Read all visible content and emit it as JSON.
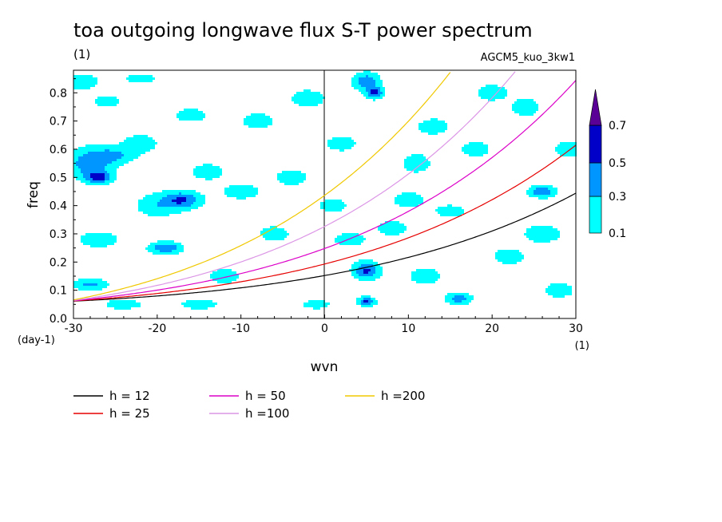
{
  "chart_data": {
    "type": "heatmap",
    "title": "toa outgoing longwave flux S-T power spectrum",
    "subtitle_left": "(1)",
    "subtitle_right": "AGCM5_kuo_3kw1",
    "xlabel": "wvn",
    "ylabel": "freq",
    "x_unit_label": "(1)",
    "y_unit_label": "(day-1)",
    "xlim": [
      -30,
      30
    ],
    "ylim": [
      0,
      0.88
    ],
    "xticks": [
      "-30",
      "-20",
      "-10",
      "0",
      "10",
      "20",
      "30"
    ],
    "yticks": [
      "0.0",
      "0.1",
      "0.2",
      "0.3",
      "0.4",
      "0.5",
      "0.6",
      "0.7",
      "0.8"
    ],
    "contour_levels": [
      0.1,
      0.3,
      0.5,
      0.7
    ],
    "colorbar_labels": [
      "0.1",
      "0.3",
      "0.5",
      "0.7"
    ],
    "colorbar_colors": [
      "#00ffff",
      "#0096ff",
      "#0000c8",
      "#5a0096"
    ],
    "dispersion_curves": [
      {
        "name": "h = 12",
        "h": 12,
        "color": "#000000"
      },
      {
        "name": "h = 25",
        "h": 25,
        "color": "#e60000"
      },
      {
        "name": "h = 50",
        "h": 50,
        "color": "#dc00c8"
      },
      {
        "name": "h =100",
        "h": 100,
        "color": "#dc96e6"
      },
      {
        "name": "h =200",
        "h": 200,
        "color": "#f0c800"
      }
    ],
    "power_blobs": [
      {
        "k": -29,
        "f": 0.84,
        "a": 2.2,
        "b": 0.03,
        "v": 0.22
      },
      {
        "k": -26,
        "f": 0.77,
        "a": 2.0,
        "b": 0.025,
        "v": 0.18
      },
      {
        "k": -28,
        "f": 0.55,
        "a": 2.5,
        "b": 0.05,
        "v": 0.45
      },
      {
        "k": -27,
        "f": 0.5,
        "a": 1.5,
        "b": 0.02,
        "v": 0.55
      },
      {
        "k": -25,
        "f": 0.58,
        "a": 2.5,
        "b": 0.03,
        "v": 0.3
      },
      {
        "k": -22,
        "f": 0.62,
        "a": 2.0,
        "b": 0.03,
        "v": 0.25
      },
      {
        "k": -17,
        "f": 0.42,
        "a": 2.2,
        "b": 0.03,
        "v": 0.5
      },
      {
        "k": -20,
        "f": 0.4,
        "a": 2.5,
        "b": 0.04,
        "v": 0.25
      },
      {
        "k": -19,
        "f": 0.25,
        "a": 1.8,
        "b": 0.02,
        "v": 0.5
      },
      {
        "k": -27,
        "f": 0.28,
        "a": 2.5,
        "b": 0.03,
        "v": 0.22
      },
      {
        "k": -28,
        "f": 0.12,
        "a": 2.0,
        "b": 0.02,
        "v": 0.35
      },
      {
        "k": -24,
        "f": 0.05,
        "a": 2.5,
        "b": 0.02,
        "v": 0.2
      },
      {
        "k": -14,
        "f": 0.52,
        "a": 2.0,
        "b": 0.03,
        "v": 0.22
      },
      {
        "k": -10,
        "f": 0.45,
        "a": 2.5,
        "b": 0.03,
        "v": 0.2
      },
      {
        "k": -8,
        "f": 0.7,
        "a": 2.0,
        "b": 0.03,
        "v": 0.22
      },
      {
        "k": -16,
        "f": 0.72,
        "a": 2.0,
        "b": 0.025,
        "v": 0.22
      },
      {
        "k": -6,
        "f": 0.3,
        "a": 2.0,
        "b": 0.03,
        "v": 0.2
      },
      {
        "k": -4,
        "f": 0.5,
        "a": 2.0,
        "b": 0.03,
        "v": 0.22
      },
      {
        "k": -2,
        "f": 0.78,
        "a": 2.0,
        "b": 0.03,
        "v": 0.25
      },
      {
        "k": 2,
        "f": 0.62,
        "a": 2.0,
        "b": 0.03,
        "v": 0.2
      },
      {
        "k": 5,
        "f": 0.84,
        "a": 1.5,
        "b": 0.03,
        "v": 0.45
      },
      {
        "k": 6,
        "f": 0.8,
        "a": 1.0,
        "b": 0.02,
        "v": 0.55
      },
      {
        "k": 5,
        "f": 0.17,
        "a": 1.5,
        "b": 0.03,
        "v": 0.55
      },
      {
        "k": 5,
        "f": 0.06,
        "a": 1.0,
        "b": 0.015,
        "v": 0.55
      },
      {
        "k": 3,
        "f": 0.28,
        "a": 2.0,
        "b": 0.025,
        "v": 0.22
      },
      {
        "k": 10,
        "f": 0.42,
        "a": 2.0,
        "b": 0.03,
        "v": 0.22
      },
      {
        "k": 11,
        "f": 0.55,
        "a": 1.5,
        "b": 0.03,
        "v": 0.3
      },
      {
        "k": 13,
        "f": 0.68,
        "a": 2.0,
        "b": 0.03,
        "v": 0.22
      },
      {
        "k": 15,
        "f": 0.38,
        "a": 2.0,
        "b": 0.025,
        "v": 0.2
      },
      {
        "k": 18,
        "f": 0.6,
        "a": 2.0,
        "b": 0.03,
        "v": 0.2
      },
      {
        "k": 20,
        "f": 0.8,
        "a": 2.0,
        "b": 0.03,
        "v": 0.22
      },
      {
        "k": 24,
        "f": 0.75,
        "a": 1.5,
        "b": 0.03,
        "v": 0.3
      },
      {
        "k": 26,
        "f": 0.45,
        "a": 1.5,
        "b": 0.02,
        "v": 0.5
      },
      {
        "k": 26,
        "f": 0.3,
        "a": 2.0,
        "b": 0.03,
        "v": 0.3
      },
      {
        "k": 22,
        "f": 0.22,
        "a": 2.0,
        "b": 0.03,
        "v": 0.22
      },
      {
        "k": 16,
        "f": 0.07,
        "a": 1.5,
        "b": 0.02,
        "v": 0.4
      },
      {
        "k": 12,
        "f": 0.15,
        "a": 2.0,
        "b": 0.03,
        "v": 0.22
      },
      {
        "k": 28,
        "f": 0.1,
        "a": 2.0,
        "b": 0.03,
        "v": 0.2
      },
      {
        "k": 29,
        "f": 0.6,
        "a": 1.5,
        "b": 0.03,
        "v": 0.25
      },
      {
        "k": -12,
        "f": 0.15,
        "a": 2.0,
        "b": 0.03,
        "v": 0.2
      },
      {
        "k": -15,
        "f": 0.05,
        "a": 2.5,
        "b": 0.02,
        "v": 0.2
      },
      {
        "k": -1,
        "f": 0.05,
        "a": 2.0,
        "b": 0.02,
        "v": 0.18
      },
      {
        "k": 8,
        "f": 0.32,
        "a": 2.0,
        "b": 0.03,
        "v": 0.2
      },
      {
        "k": -22,
        "f": 0.85,
        "a": 2.0,
        "b": 0.02,
        "v": 0.2
      },
      {
        "k": 1,
        "f": 0.4,
        "a": 2.0,
        "b": 0.03,
        "v": 0.18
      }
    ]
  }
}
